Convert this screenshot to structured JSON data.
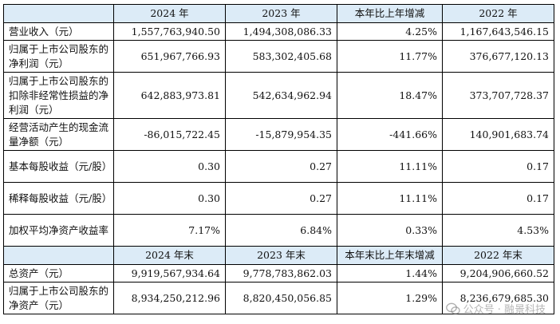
{
  "header1": [
    "",
    "2024 年",
    "2023 年",
    "本年比上年增减",
    "2022 年"
  ],
  "rows1": [
    {
      "label": "营业收入（元）",
      "v2024": "1,557,763,940.50",
      "v2023": "1,494,308,086.33",
      "change": "4.25%",
      "v2022": "1,167,643,546.15"
    },
    {
      "label": "归属于上市公司股东的净利润（元）",
      "v2024": "651,967,766.93",
      "v2023": "583,302,405.68",
      "change": "11.77%",
      "v2022": "376,677,120.13"
    },
    {
      "label": "归属于上市公司股东的扣除非经常性损益的净利润（元）",
      "v2024": "642,883,973.81",
      "v2023": "542,634,962.94",
      "change": "18.47%",
      "v2022": "373,707,728.37"
    },
    {
      "label": "经营活动产生的现金流量净额（元）",
      "v2024": "-86,015,722.45",
      "v2023": "-15,879,954.35",
      "change": "-441.66%",
      "v2022": "140,901,683.74"
    },
    {
      "label": "基本每股收益（元/股）",
      "v2024": "0.30",
      "v2023": "0.27",
      "change": "11.11%",
      "v2022": "0.17"
    },
    {
      "label": "稀释每股收益（元/股）",
      "v2024": "0.30",
      "v2023": "0.27",
      "change": "11.11%",
      "v2022": "0.17"
    },
    {
      "label": "加权平均净资产收益率",
      "v2024": "7.17%",
      "v2023": "6.84%",
      "change": "0.33%",
      "v2022": "4.53%"
    }
  ],
  "header2": [
    "",
    "2024 年末",
    "2023 年末",
    "本年末比上年末增减",
    "2022 年末"
  ],
  "rows2": [
    {
      "label": "总资产（元）",
      "v2024": "9,919,567,934.64",
      "v2023": "9,778,783,862.03",
      "change": "1.44%",
      "v2022": "9,204,906,660.52"
    },
    {
      "label": "归属于上市公司股东的净资产（元）",
      "v2024": "8,934,250,212.96",
      "v2023": "8,820,450,056.85",
      "change": "1.29%",
      "v2022": "8,236,679,685.30"
    }
  ],
  "watermark": "公众号 · 融景科技",
  "watermark_icon": "wechat-icon"
}
